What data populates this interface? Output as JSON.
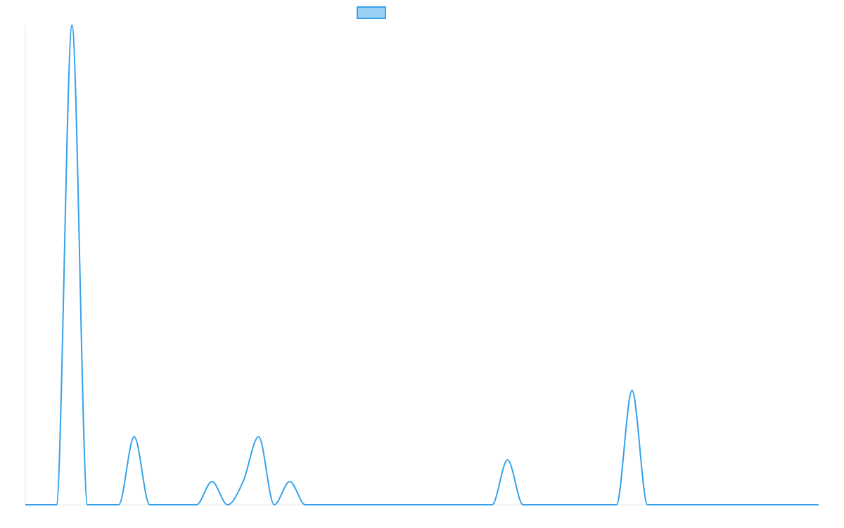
{
  "chart_data": {
    "type": "line",
    "title": "",
    "xlabel": "",
    "ylabel": "",
    "grid": false,
    "legend": {
      "placement": "top-center",
      "entries": [
        {
          "label": "",
          "fill": "#9AD0F5",
          "stroke": "#36A2EB"
        }
      ]
    },
    "colors": {
      "line": "#36A2EB",
      "legend_fill": "#9AD0F5",
      "axis": "#E5E5E5"
    },
    "xlim": [
      0,
      51
    ],
    "ylim": [
      0,
      31
    ],
    "series": [
      {
        "values": [
          0,
          0,
          0,
          31,
          0,
          0,
          0,
          4.4,
          0,
          0,
          0,
          0,
          1.5,
          0,
          1.5,
          4.4,
          0,
          1.5,
          0,
          0,
          0,
          0,
          0,
          0,
          0,
          0,
          0,
          0,
          0,
          0,
          0,
          2.9,
          0,
          0,
          0,
          0,
          0,
          0,
          0,
          7.4,
          0,
          0,
          0,
          0,
          0,
          0,
          0,
          0,
          0,
          0,
          0,
          0
        ]
      }
    ]
  }
}
